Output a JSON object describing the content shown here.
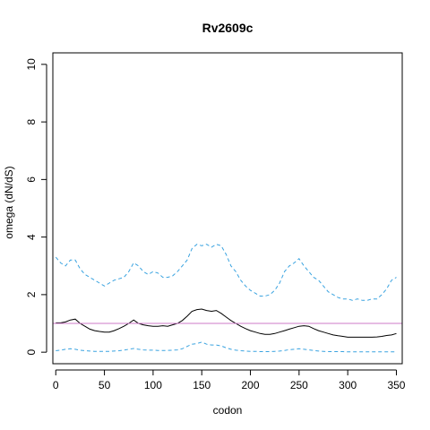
{
  "chart_data": {
    "type": "line",
    "title": "Rv2609c",
    "xlabel": "codon",
    "ylabel": "omega (dN/dS)",
    "xlim": [
      -3,
      356
    ],
    "ylim": [
      -0.4,
      10.4
    ],
    "xticks": [
      0,
      50,
      100,
      150,
      200,
      250,
      300,
      350
    ],
    "yticks": [
      0,
      2,
      4,
      6,
      8,
      10
    ],
    "grid": false,
    "reference_line": {
      "y": 1,
      "color": "#cc79c7"
    },
    "series": [
      {
        "style": "solid",
        "color": "#000000",
        "x": [
          0,
          5,
          10,
          15,
          20,
          25,
          30,
          35,
          40,
          45,
          50,
          55,
          60,
          65,
          70,
          75,
          80,
          85,
          90,
          95,
          100,
          105,
          110,
          115,
          120,
          125,
          130,
          135,
          140,
          145,
          150,
          155,
          160,
          165,
          170,
          175,
          180,
          185,
          190,
          195,
          200,
          205,
          210,
          215,
          220,
          225,
          230,
          235,
          240,
          245,
          250,
          255,
          260,
          265,
          270,
          275,
          280,
          285,
          290,
          295,
          300,
          305,
          310,
          315,
          320,
          325,
          330,
          335,
          340,
          345,
          350
        ],
        "values": [
          1.02,
          1.02,
          1.05,
          1.12,
          1.15,
          1.0,
          0.9,
          0.8,
          0.75,
          0.72,
          0.7,
          0.7,
          0.75,
          0.82,
          0.9,
          1.0,
          1.12,
          1.0,
          0.95,
          0.92,
          0.9,
          0.9,
          0.92,
          0.9,
          0.95,
          1.0,
          1.1,
          1.25,
          1.42,
          1.48,
          1.5,
          1.45,
          1.42,
          1.45,
          1.35,
          1.22,
          1.1,
          1.0,
          0.9,
          0.82,
          0.75,
          0.7,
          0.65,
          0.62,
          0.62,
          0.65,
          0.7,
          0.75,
          0.8,
          0.85,
          0.9,
          0.92,
          0.9,
          0.82,
          0.75,
          0.7,
          0.65,
          0.6,
          0.57,
          0.55,
          0.52,
          0.52,
          0.52,
          0.52,
          0.52,
          0.52,
          0.53,
          0.55,
          0.58,
          0.6,
          0.65
        ]
      },
      {
        "style": "dashed",
        "color": "#3aa3e0",
        "x": [
          0,
          5,
          10,
          15,
          20,
          25,
          30,
          35,
          40,
          45,
          50,
          55,
          60,
          65,
          70,
          75,
          80,
          85,
          90,
          95,
          100,
          105,
          110,
          115,
          120,
          125,
          130,
          135,
          140,
          145,
          150,
          155,
          160,
          165,
          170,
          175,
          180,
          185,
          190,
          195,
          200,
          205,
          210,
          215,
          220,
          225,
          230,
          235,
          240,
          245,
          250,
          255,
          260,
          265,
          270,
          275,
          280,
          285,
          290,
          295,
          300,
          305,
          310,
          315,
          320,
          325,
          330,
          335,
          340,
          345,
          350
        ],
        "values": [
          3.3,
          3.1,
          3.0,
          3.2,
          3.2,
          2.9,
          2.7,
          2.6,
          2.5,
          2.4,
          2.3,
          2.4,
          2.5,
          2.55,
          2.6,
          2.8,
          3.1,
          3.0,
          2.8,
          2.7,
          2.8,
          2.75,
          2.6,
          2.6,
          2.65,
          2.8,
          3.0,
          3.2,
          3.6,
          3.75,
          3.7,
          3.75,
          3.65,
          3.75,
          3.7,
          3.4,
          3.0,
          2.8,
          2.5,
          2.3,
          2.15,
          2.05,
          1.95,
          1.95,
          2.0,
          2.15,
          2.4,
          2.8,
          3.0,
          3.1,
          3.25,
          3.0,
          2.8,
          2.6,
          2.5,
          2.3,
          2.1,
          2.0,
          1.9,
          1.85,
          1.85,
          1.8,
          1.85,
          1.8,
          1.8,
          1.85,
          1.85,
          2.0,
          2.2,
          2.5,
          2.6
        ]
      },
      {
        "style": "dashed",
        "color": "#3aa3e0",
        "x": [
          0,
          5,
          10,
          15,
          20,
          25,
          30,
          35,
          40,
          45,
          50,
          55,
          60,
          65,
          70,
          75,
          80,
          85,
          90,
          95,
          100,
          105,
          110,
          115,
          120,
          125,
          130,
          135,
          140,
          145,
          150,
          155,
          160,
          165,
          170,
          175,
          180,
          185,
          190,
          195,
          200,
          205,
          210,
          215,
          220,
          225,
          230,
          235,
          240,
          245,
          250,
          255,
          260,
          265,
          270,
          275,
          280,
          285,
          290,
          295,
          300,
          305,
          310,
          315,
          320,
          325,
          330,
          335,
          340,
          345,
          350
        ],
        "values": [
          0.05,
          0.07,
          0.1,
          0.12,
          0.1,
          0.07,
          0.05,
          0.04,
          0.03,
          0.03,
          0.03,
          0.03,
          0.04,
          0.05,
          0.07,
          0.1,
          0.13,
          0.1,
          0.08,
          0.07,
          0.07,
          0.06,
          0.06,
          0.06,
          0.07,
          0.08,
          0.12,
          0.2,
          0.28,
          0.3,
          0.35,
          0.28,
          0.25,
          0.25,
          0.22,
          0.15,
          0.1,
          0.07,
          0.05,
          0.04,
          0.03,
          0.03,
          0.02,
          0.02,
          0.02,
          0.03,
          0.04,
          0.06,
          0.09,
          0.1,
          0.12,
          0.1,
          0.08,
          0.06,
          0.04,
          0.03,
          0.02,
          0.02,
          0.02,
          0.02,
          0.01,
          0.01,
          0.01,
          0.01,
          0.01,
          0.01,
          0.01,
          0.01,
          0.01,
          0.01,
          0.01
        ]
      }
    ]
  }
}
